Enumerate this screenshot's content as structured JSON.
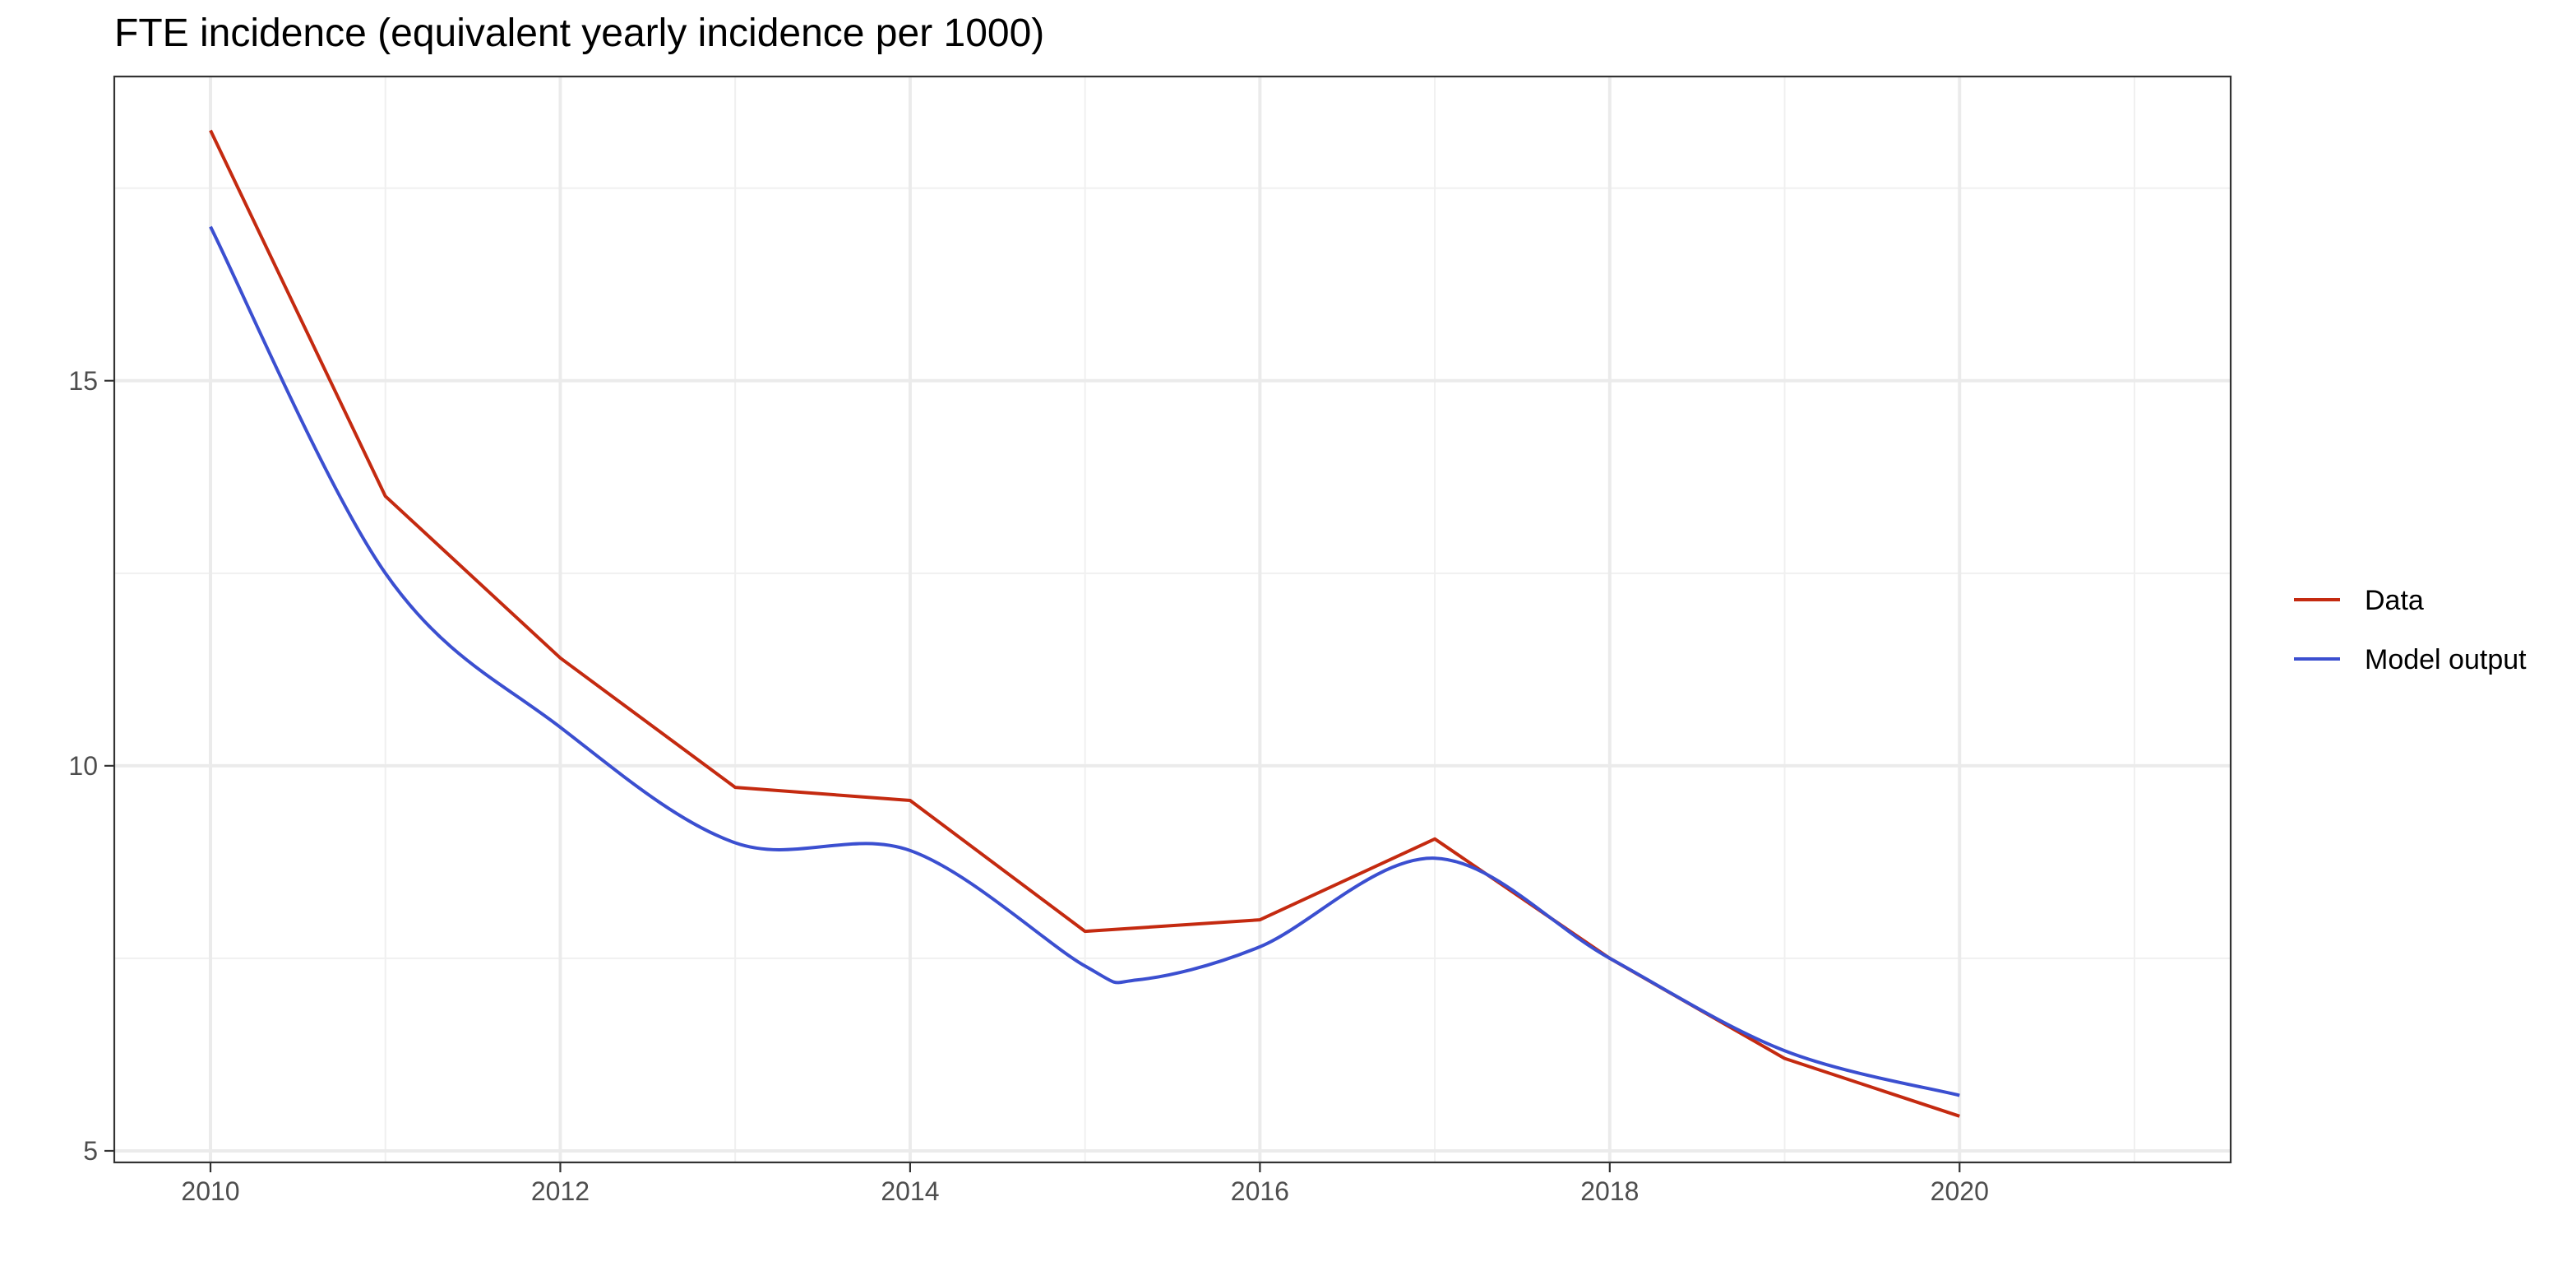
{
  "chart_data": {
    "type": "line",
    "title": "FTE incidence (equivalent yearly incidence per 1000)",
    "xlabel": "",
    "ylabel": "",
    "xlim": [
      2009.45,
      2021.55
    ],
    "ylim": [
      4.85,
      18.95
    ],
    "x_ticks": [
      2010,
      2012,
      2014,
      2016,
      2018,
      2020
    ],
    "x_minor_ticks": [
      2011,
      2013,
      2015,
      2017,
      2019,
      2021
    ],
    "y_ticks": [
      5,
      10,
      15
    ],
    "y_minor_ticks": [
      7.5,
      12.5,
      17.5
    ],
    "grid": true,
    "legend_position": "right",
    "series": [
      {
        "name": "Data",
        "color": "#c42a10",
        "style": "straight",
        "x": [
          2010,
          2011,
          2012,
          2013,
          2014,
          2015,
          2016,
          2017,
          2018,
          2019,
          2020
        ],
        "y": [
          18.25,
          13.5,
          11.4,
          9.72,
          9.55,
          7.85,
          8.0,
          9.05,
          7.5,
          6.2,
          5.45
        ]
      },
      {
        "name": "Model output",
        "color": "#3b4fd0",
        "style": "smooth",
        "x": [
          2010,
          2011,
          2012,
          2013,
          2014,
          2015,
          2015.3,
          2016,
          2017,
          2018,
          2019,
          2020
        ],
        "y": [
          17.0,
          12.5,
          10.5,
          9.0,
          8.9,
          7.4,
          7.22,
          7.65,
          8.8,
          7.5,
          6.3,
          5.72
        ]
      }
    ]
  }
}
